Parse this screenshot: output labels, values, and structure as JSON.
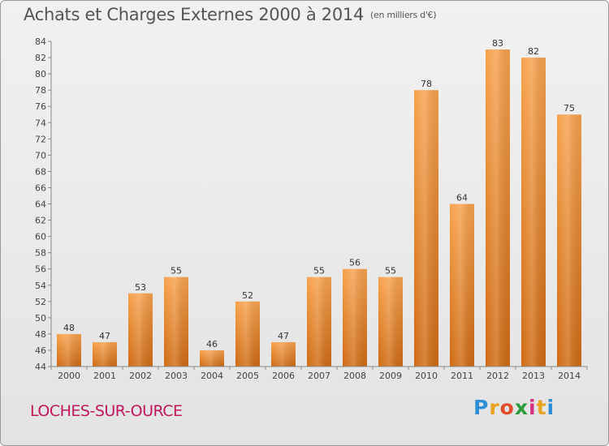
{
  "chart_data": {
    "type": "bar",
    "title": "Achats et Charges Externes 2000 à 2014",
    "subtitle": "(en milliers d'€)",
    "categories": [
      "2000",
      "2001",
      "2002",
      "2003",
      "2004",
      "2005",
      "2006",
      "2007",
      "2008",
      "2009",
      "2010",
      "2011",
      "2012",
      "2013",
      "2014"
    ],
    "values": [
      48,
      47,
      53,
      55,
      46,
      52,
      47,
      55,
      56,
      55,
      78,
      64,
      83,
      82,
      75
    ],
    "ylim": [
      44,
      84
    ],
    "ytick_step": 2,
    "xlabel": "",
    "ylabel": "",
    "grid": false,
    "bar_color": "#f0913a"
  },
  "commune": "LOCHES-SUR-OURCE",
  "brand": {
    "letters": [
      "P",
      "r",
      "o",
      "x",
      "i",
      "t",
      "i"
    ],
    "colors": [
      "#2f8fd6",
      "#e8a21b",
      "#e14b2a",
      "#2d9b3a",
      "#d6317f",
      "#e8a21b",
      "#2f8fd6"
    ]
  }
}
